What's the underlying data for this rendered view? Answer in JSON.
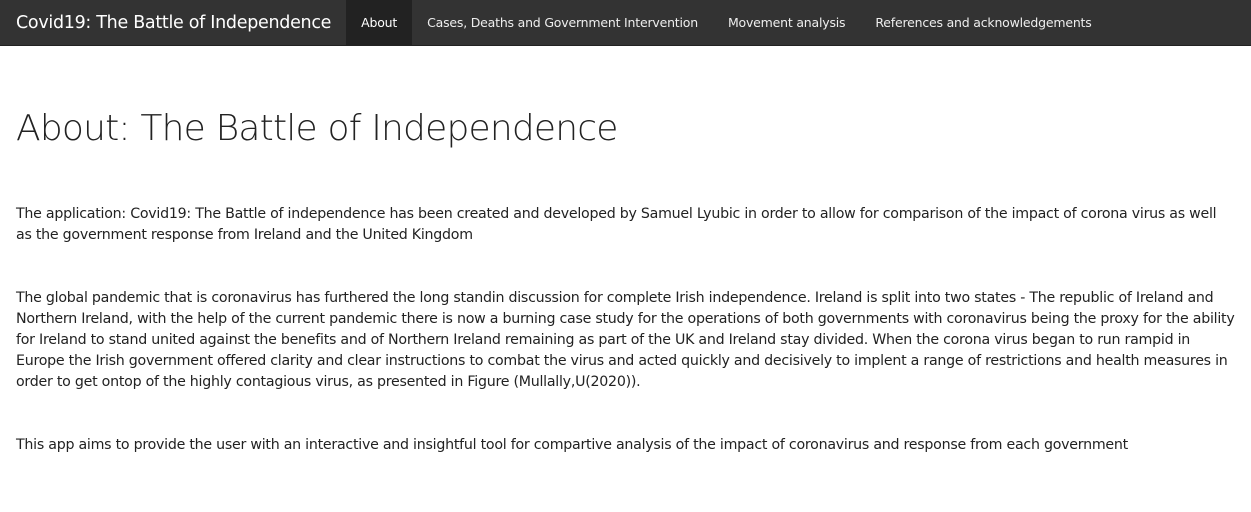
{
  "navbar": {
    "brand": "Covid19: The Battle of Independence",
    "tabs": [
      {
        "label": "About",
        "active": true
      },
      {
        "label": "Cases, Deaths and Government Intervention",
        "active": false
      },
      {
        "label": "Movement analysis",
        "active": false
      },
      {
        "label": "References and acknowledgements",
        "active": false
      }
    ]
  },
  "main": {
    "title": "About: The Battle of Independence",
    "paragraphs": [
      "The application: Covid19: The Battle of independence has been created and developed by Samuel Lyubic in order to allow for comparison of the impact of corona virus as well as the government response from Ireland and the United Kingdom",
      "The global pandemic that is coronavirus has furthered the long standin discussion for complete Irish independence. Ireland is split into two states - The republic of Ireland and Northern Ireland, with the help of the current pandemic there is now a burning case study for the operations of both governments with coronavirus being the proxy for the ability for Ireland to stand united against the benefits and of Northern Ireland remaining as part of the UK and Ireland stay divided. When the corona virus began to run rampid in Europe the Irish government offered clarity and clear instructions to combat the virus and acted quickly and decisively to implent a range of restrictions and health measures in order to get ontop of the highly contagious virus, as presented in Figure (Mullally,U(2020)).",
      "This app aims to provide the user with an interactive and insightful tool for compartive analysis of the impact of coronavirus and response from each government"
    ]
  },
  "colors": {
    "navbar_bg": "#333333",
    "navbar_active_bg": "#222222",
    "navbar_text": "#ffffff",
    "body_text": "#222222"
  }
}
